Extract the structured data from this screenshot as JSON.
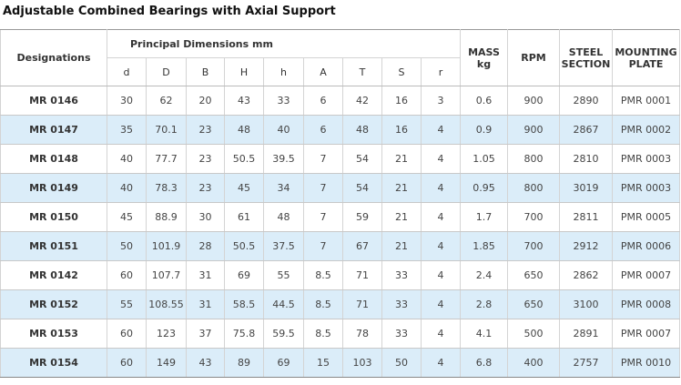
{
  "title": "Adjustable Combined Bearings with Axial Support",
  "table": {
    "header": {
      "designations": "Designations",
      "group": "Principal Dimensions mm",
      "dims": [
        "d",
        "D",
        "B",
        "H",
        "h",
        "A",
        "T",
        "S",
        "r"
      ],
      "mass": [
        "MASS",
        "kg"
      ],
      "rpm": "RPM",
      "steel": [
        "STEEL",
        "SECTION"
      ],
      "plate": [
        "MOUNTING",
        "PLATE"
      ]
    },
    "rows": [
      [
        "MR 0146",
        "30",
        "62",
        "20",
        "43",
        "33",
        "6",
        "42",
        "16",
        "3",
        "0.6",
        "900",
        "2890",
        "PMR 0001"
      ],
      [
        "MR 0147",
        "35",
        "70.1",
        "23",
        "48",
        "40",
        "6",
        "48",
        "16",
        "4",
        "0.9",
        "900",
        "2867",
        "PMR 0002"
      ],
      [
        "MR 0148",
        "40",
        "77.7",
        "23",
        "50.5",
        "39.5",
        "7",
        "54",
        "21",
        "4",
        "1.05",
        "800",
        "2810",
        "PMR 0003"
      ],
      [
        "MR 0149",
        "40",
        "78.3",
        "23",
        "45",
        "34",
        "7",
        "54",
        "21",
        "4",
        "0.95",
        "800",
        "3019",
        "PMR 0003"
      ],
      [
        "MR 0150",
        "45",
        "88.9",
        "30",
        "61",
        "48",
        "7",
        "59",
        "21",
        "4",
        "1.7",
        "700",
        "2811",
        "PMR 0005"
      ],
      [
        "MR 0151",
        "50",
        "101.9",
        "28",
        "50.5",
        "37.5",
        "7",
        "67",
        "21",
        "4",
        "1.85",
        "700",
        "2912",
        "PMR 0006"
      ],
      [
        "MR 0142",
        "60",
        "107.7",
        "31",
        "69",
        "55",
        "8.5",
        "71",
        "33",
        "4",
        "2.4",
        "650",
        "2862",
        "PMR 0007"
      ],
      [
        "MR 0152",
        "55",
        "108.55",
        "31",
        "58.5",
        "44.5",
        "8.5",
        "71",
        "33",
        "4",
        "2.8",
        "650",
        "3100",
        "PMR 0008"
      ],
      [
        "MR 0153",
        "60",
        "123",
        "37",
        "75.8",
        "59.5",
        "8.5",
        "78",
        "33",
        "4",
        "4.1",
        "500",
        "2891",
        "PMR 0007"
      ],
      [
        "MR 0154",
        "60",
        "149",
        "43",
        "89",
        "69",
        "15",
        "103",
        "50",
        "4",
        "6.8",
        "400",
        "2757",
        "PMR 0010"
      ]
    ]
  }
}
